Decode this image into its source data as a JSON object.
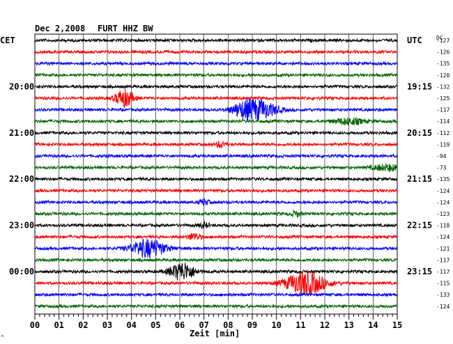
{
  "header": {
    "date": "Dec 2,2008",
    "station": "FURT HHZ BW",
    "left_zone": "CET",
    "right_zone": "UTC",
    "dc_label": "DC"
  },
  "footer": {
    "xlabel": "Zeit [min]",
    "corner_mark": "^"
  },
  "chart_data": {
    "type": "line",
    "title": "Dec 2,2008   FURT HHZ BW",
    "xlabel": "Zeit [min]",
    "xlim": [
      0,
      15
    ],
    "x_ticks": [
      "00",
      "01",
      "02",
      "03",
      "04",
      "05",
      "06",
      "07",
      "08",
      "09",
      "10",
      "11",
      "12",
      "13",
      "14",
      "15"
    ],
    "trace_colors": [
      "#000000",
      "#ff0000",
      "#0000ff",
      "#006400"
    ],
    "left_time_labels": [
      {
        "trace": 4,
        "label": "20:00"
      },
      {
        "trace": 8,
        "label": "21:00"
      },
      {
        "trace": 12,
        "label": "22:00"
      },
      {
        "trace": 16,
        "label": "23:00"
      },
      {
        "trace": 20,
        "label": "00:00"
      }
    ],
    "right_time_labels": [
      {
        "trace": 0,
        "label": "UTC"
      },
      {
        "trace": 4,
        "label": "19:15"
      },
      {
        "trace": 8,
        "label": "20:15"
      },
      {
        "trace": 12,
        "label": "21:15"
      },
      {
        "trace": 16,
        "label": "22:15"
      },
      {
        "trace": 20,
        "label": "23:15"
      }
    ],
    "dc_offsets": [
      -127,
      -126,
      -135,
      -120,
      -132,
      -125,
      -117,
      -114,
      -112,
      -119,
      -94,
      -73,
      -135,
      -124,
      -124,
      -123,
      -118,
      -124,
      -121,
      -117,
      -117,
      -115,
      -133,
      -124
    ],
    "events": [
      {
        "trace": 5,
        "minute": 3.7,
        "amplitude": 1.0,
        "width": 0.35
      },
      {
        "trace": 6,
        "minute": 9.3,
        "amplitude": 1.0,
        "width": 0.7
      },
      {
        "trace": 6,
        "minute": 8.6,
        "amplitude": 0.6,
        "width": 0.5
      },
      {
        "trace": 7,
        "minute": 13.0,
        "amplitude": 0.35,
        "width": 0.6
      },
      {
        "trace": 9,
        "minute": 7.7,
        "amplitude": 0.35,
        "width": 0.2
      },
      {
        "trace": 11,
        "minute": 14.6,
        "amplitude": 0.35,
        "width": 0.6
      },
      {
        "trace": 14,
        "minute": 7.0,
        "amplitude": 0.3,
        "width": 0.2
      },
      {
        "trace": 15,
        "minute": 10.8,
        "amplitude": 0.3,
        "width": 0.2
      },
      {
        "trace": 16,
        "minute": 7.0,
        "amplitude": 0.3,
        "width": 0.2
      },
      {
        "trace": 17,
        "minute": 6.6,
        "amplitude": 0.4,
        "width": 0.25
      },
      {
        "trace": 18,
        "minute": 4.7,
        "amplitude": 1.0,
        "width": 0.7
      },
      {
        "trace": 20,
        "minute": 6.1,
        "amplitude": 1.0,
        "width": 0.5
      },
      {
        "trace": 21,
        "minute": 11.2,
        "amplitude": 1.3,
        "width": 0.8
      }
    ]
  }
}
